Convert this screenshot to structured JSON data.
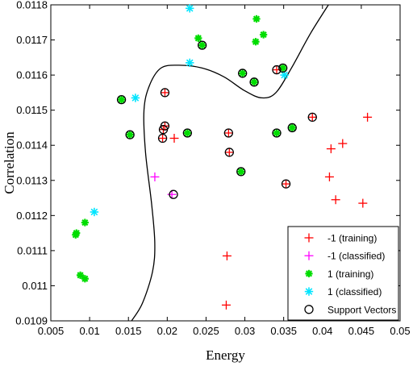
{
  "chart_data": {
    "type": "scatter",
    "xlabel": "Energy",
    "ylabel": "Correlation",
    "xlim": [
      0.005,
      0.05
    ],
    "ylim": [
      0.0109,
      0.0118
    ],
    "x_ticks": [
      "0.005",
      "0.01",
      "0.015",
      "0.02",
      "0.025",
      "0.03",
      "0.035",
      "0.04",
      "0.045",
      "0.05"
    ],
    "x_tick_values": [
      0.005,
      0.01,
      0.015,
      0.02,
      0.025,
      0.03,
      0.035,
      0.04,
      0.045,
      0.05
    ],
    "y_ticks": [
      "0.0109",
      "0.011",
      "0.0111",
      "0.0112",
      "0.0113",
      "0.0114",
      "0.0115",
      "0.0116",
      "0.0117",
      "0.0118"
    ],
    "y_tick_values": [
      0.0109,
      0.011,
      0.0111,
      0.0112,
      0.0113,
      0.0114,
      0.0115,
      0.0116,
      0.0117,
      0.0118
    ],
    "grid": false,
    "legend_position": "bottom-right",
    "series": [
      {
        "name": "-1 (training)",
        "marker": "plus",
        "color": "#ff0000",
        "points": [
          {
            "x": 0.0209,
            "y": 0.01142
          },
          {
            "x": 0.0194,
            "y": 0.01142
          },
          {
            "x": 0.0197,
            "y": 0.011455
          },
          {
            "x": 0.0195,
            "y": 0.011445
          },
          {
            "x": 0.0197,
            "y": 0.01155
          },
          {
            "x": 0.0279,
            "y": 0.011435
          },
          {
            "x": 0.028,
            "y": 0.01138
          },
          {
            "x": 0.0341,
            "y": 0.011615
          },
          {
            "x": 0.0387,
            "y": 0.01148
          },
          {
            "x": 0.0353,
            "y": 0.01129
          },
          {
            "x": 0.0411,
            "y": 0.01139
          },
          {
            "x": 0.0426,
            "y": 0.011405
          },
          {
            "x": 0.0458,
            "y": 0.01148
          },
          {
            "x": 0.0409,
            "y": 0.01131
          },
          {
            "x": 0.0417,
            "y": 0.011245
          },
          {
            "x": 0.0452,
            "y": 0.011235
          },
          {
            "x": 0.0277,
            "y": 0.011085
          },
          {
            "x": 0.0276,
            "y": 0.010945
          }
        ]
      },
      {
        "name": "-1 (classified)",
        "marker": "plus",
        "color": "#ff00ff",
        "points": [
          {
            "x": 0.0184,
            "y": 0.01131
          },
          {
            "x": 0.0206,
            "y": 0.01126
          }
        ]
      },
      {
        "name": "1 (training)",
        "marker": "star",
        "color": "#00dd00",
        "points": [
          {
            "x": 0.0141,
            "y": 0.01153
          },
          {
            "x": 0.0152,
            "y": 0.01143
          },
          {
            "x": 0.0226,
            "y": 0.011435
          },
          {
            "x": 0.024,
            "y": 0.011705
          },
          {
            "x": 0.0245,
            "y": 0.011685
          },
          {
            "x": 0.0297,
            "y": 0.011605
          },
          {
            "x": 0.0312,
            "y": 0.01158
          },
          {
            "x": 0.0315,
            "y": 0.01176
          },
          {
            "x": 0.0314,
            "y": 0.011695
          },
          {
            "x": 0.0324,
            "y": 0.011715
          },
          {
            "x": 0.0349,
            "y": 0.01162
          },
          {
            "x": 0.0341,
            "y": 0.011435
          },
          {
            "x": 0.0361,
            "y": 0.01145
          },
          {
            "x": 0.0295,
            "y": 0.011325
          },
          {
            "x": 0.0094,
            "y": 0.01118
          },
          {
            "x": 0.0083,
            "y": 0.01115
          },
          {
            "x": 0.0082,
            "y": 0.011145
          },
          {
            "x": 0.0088,
            "y": 0.01103
          },
          {
            "x": 0.0094,
            "y": 0.01102
          }
        ]
      },
      {
        "name": "1 (classified)",
        "marker": "asterisk",
        "color": "#00e5ff",
        "points": [
          {
            "x": 0.0229,
            "y": 0.01179
          },
          {
            "x": 0.0229,
            "y": 0.011635
          },
          {
            "x": 0.0351,
            "y": 0.0116
          },
          {
            "x": 0.0159,
            "y": 0.011535
          },
          {
            "x": 0.0106,
            "y": 0.01121
          }
        ]
      },
      {
        "name": "Support Vectors",
        "marker": "circle",
        "color": "#000000",
        "points": [
          {
            "x": 0.0197,
            "y": 0.01155
          },
          {
            "x": 0.0141,
            "y": 0.01153
          },
          {
            "x": 0.0152,
            "y": 0.01143
          },
          {
            "x": 0.0195,
            "y": 0.011445
          },
          {
            "x": 0.0197,
            "y": 0.011455
          },
          {
            "x": 0.0194,
            "y": 0.01142
          },
          {
            "x": 0.0226,
            "y": 0.011435
          },
          {
            "x": 0.0245,
            "y": 0.011685
          },
          {
            "x": 0.0297,
            "y": 0.011605
          },
          {
            "x": 0.0312,
            "y": 0.01158
          },
          {
            "x": 0.0341,
            "y": 0.011615
          },
          {
            "x": 0.0349,
            "y": 0.01162
          },
          {
            "x": 0.0387,
            "y": 0.01148
          },
          {
            "x": 0.0341,
            "y": 0.011435
          },
          {
            "x": 0.0361,
            "y": 0.01145
          },
          {
            "x": 0.0279,
            "y": 0.011435
          },
          {
            "x": 0.028,
            "y": 0.01138
          },
          {
            "x": 0.0295,
            "y": 0.011325
          },
          {
            "x": 0.0353,
            "y": 0.01129
          },
          {
            "x": 0.0208,
            "y": 0.01126
          }
        ]
      }
    ],
    "decision_boundary": {
      "color": "#000000",
      "points": [
        [
          0.0154,
          0.0109
        ],
        [
          0.0168,
          0.01095
        ],
        [
          0.0181,
          0.01104
        ],
        [
          0.0184,
          0.01112
        ],
        [
          0.018,
          0.01123
        ],
        [
          0.0172,
          0.01138
        ],
        [
          0.017,
          0.0115
        ],
        [
          0.0177,
          0.01157
        ],
        [
          0.0192,
          0.01162
        ],
        [
          0.0215,
          0.011628
        ],
        [
          0.0245,
          0.01162
        ],
        [
          0.0273,
          0.011595
        ],
        [
          0.03,
          0.011555
        ],
        [
          0.0322,
          0.011535
        ],
        [
          0.034,
          0.01155
        ],
        [
          0.036,
          0.01162
        ],
        [
          0.0385,
          0.01172
        ],
        [
          0.0412,
          0.011815
        ]
      ]
    },
    "legend": [
      {
        "label": "-1 (training)",
        "marker": "plus",
        "color": "#ff0000"
      },
      {
        "label": "-1 (classified)",
        "marker": "plus",
        "color": "#ff00ff"
      },
      {
        "label": "1 (training)",
        "marker": "star",
        "color": "#00dd00"
      },
      {
        "label": "1 (classified)",
        "marker": "asterisk",
        "color": "#00e5ff"
      },
      {
        "label": "Support Vectors",
        "marker": "circle",
        "color": "#000000"
      }
    ]
  }
}
